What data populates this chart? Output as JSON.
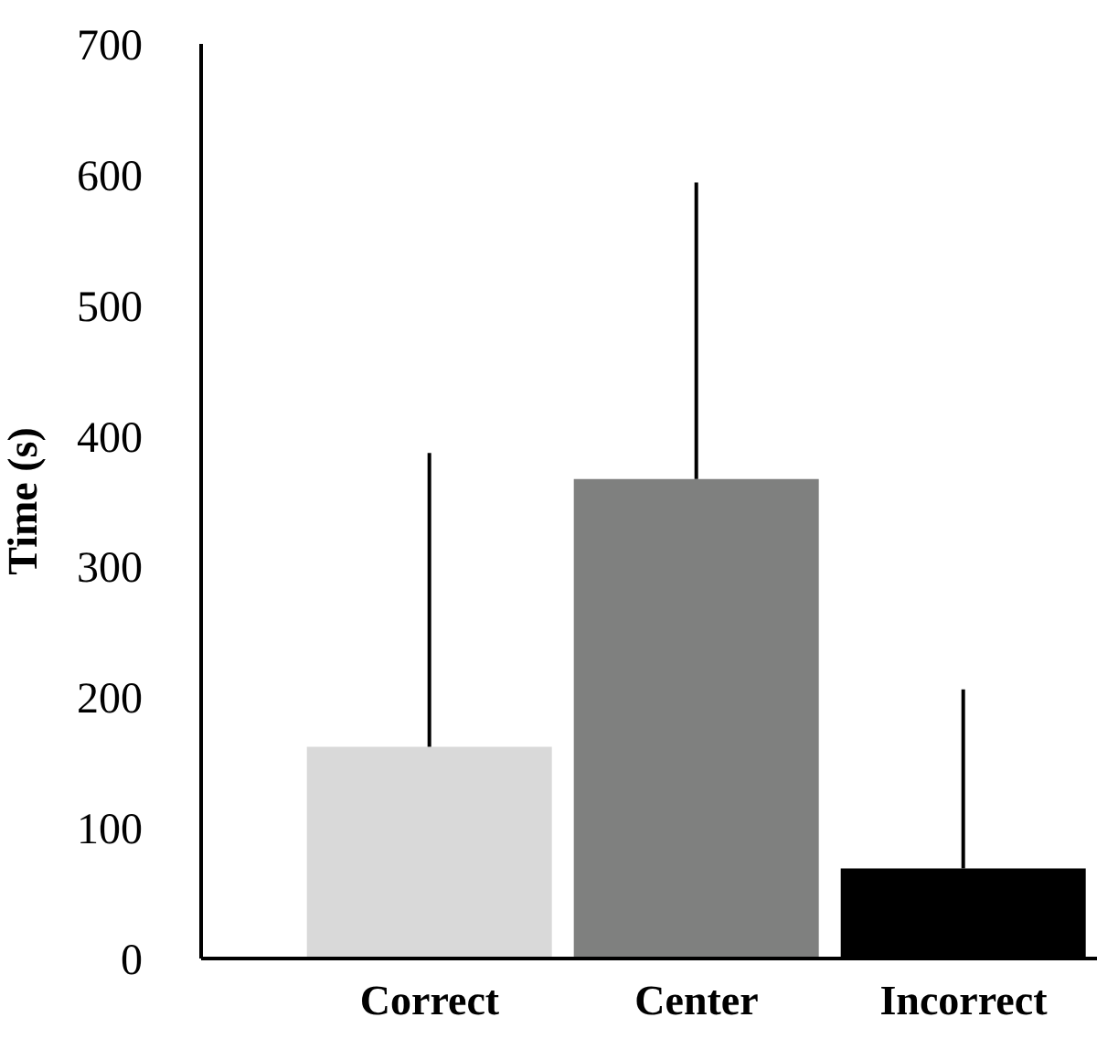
{
  "chart_data": {
    "type": "bar",
    "ylabel": "Time (s)",
    "categories": [
      "Correct",
      "Center",
      "Incorrect"
    ],
    "values": [
      162,
      367,
      69
    ],
    "colors": [
      "#d9d9d9",
      "#7f807f",
      "#000000"
    ],
    "errors": [
      [
        162,
        387
      ],
      [
        367,
        594
      ],
      [
        69,
        206
      ]
    ],
    "ylim": [
      0,
      700
    ],
    "yticks": [
      0,
      100,
      200,
      300,
      400,
      500,
      600,
      700
    ],
    "grid": false
  }
}
